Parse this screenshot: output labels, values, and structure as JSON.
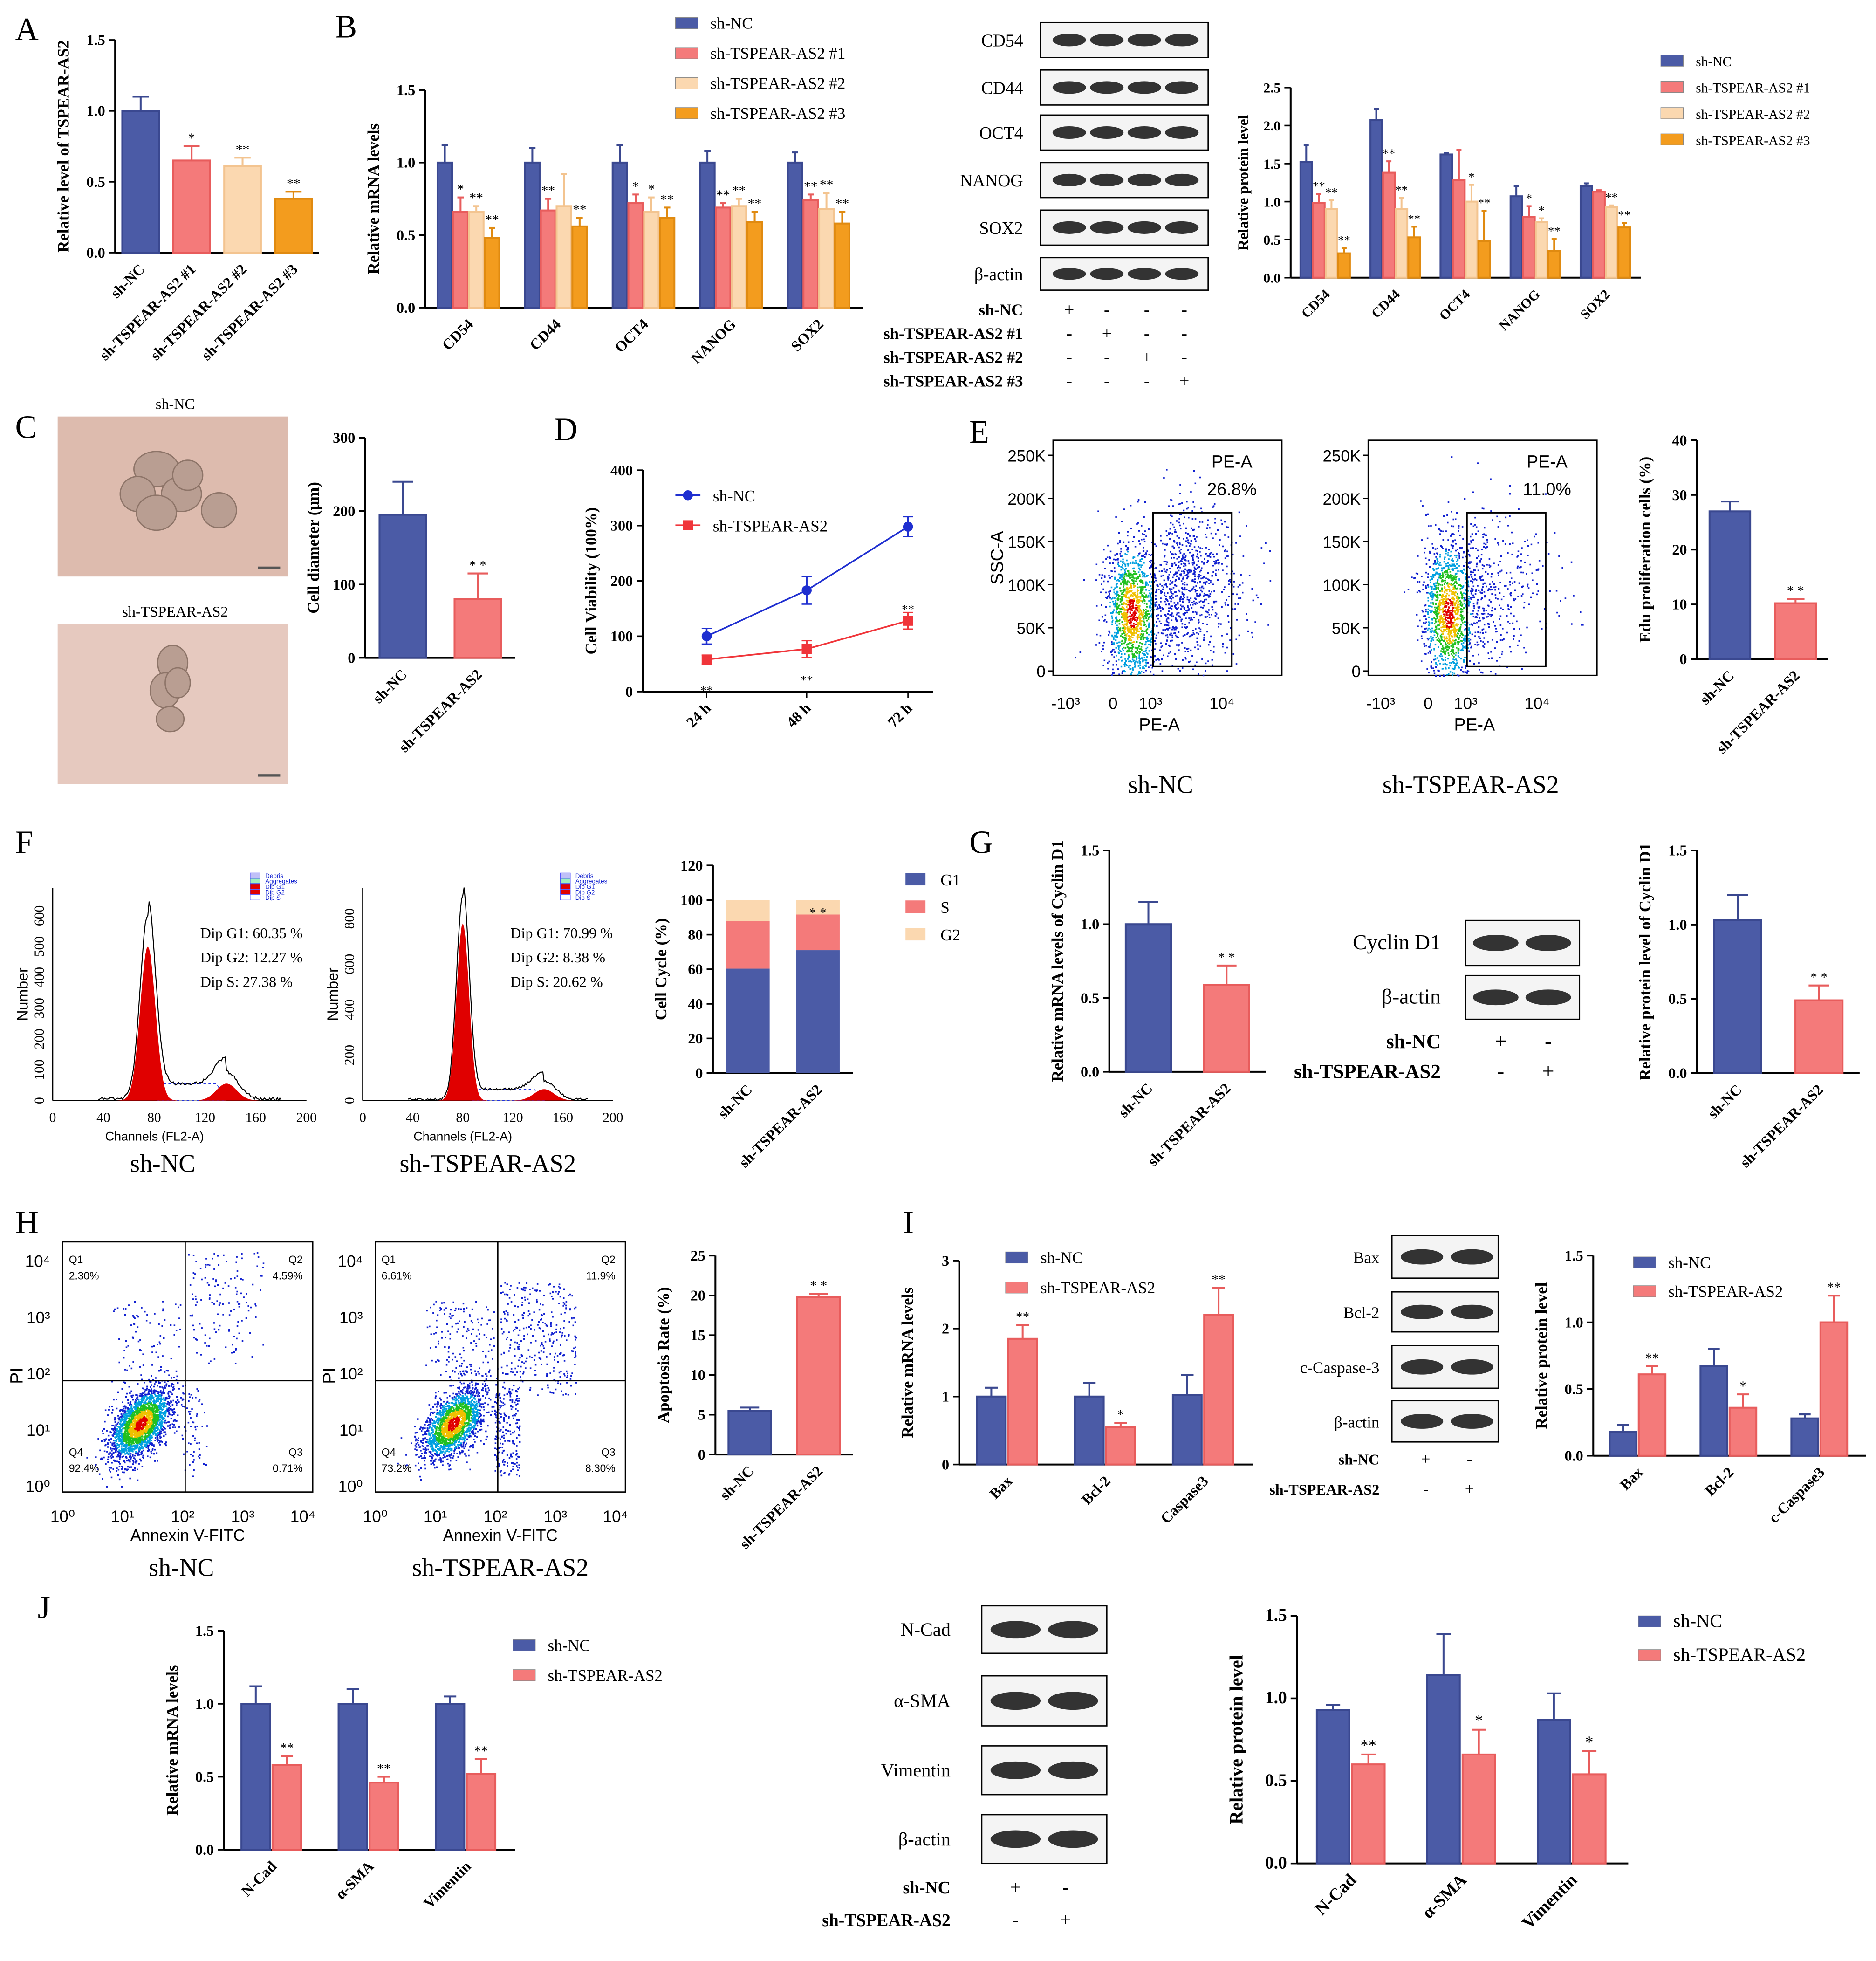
{
  "colors": {
    "nc": "#4B5BA6",
    "kd1": "#F47A7A",
    "kd2": "#FBD8B0",
    "kd3": "#F39C1E",
    "g1": "#4B5BA6",
    "s": "#F47A7A",
    "g2": "#FBD8B0"
  },
  "panel_letters": [
    "A",
    "B",
    "C",
    "D",
    "E",
    "F",
    "G",
    "H",
    "I",
    "J"
  ],
  "legends": {
    "four": [
      "sh-NC",
      "sh-TSPEAR-AS2 #1",
      "sh-TSPEAR-AS2 #2",
      "sh-TSPEAR-AS2 #3"
    ],
    "two": [
      "sh-NC",
      "sh-TSPEAR-AS2"
    ],
    "cycle": [
      "G1",
      "S",
      "G2"
    ]
  },
  "blots": {
    "B": {
      "rows": [
        "CD54",
        "CD44",
        "OCT4",
        "NANOG",
        "SOX2",
        "β-actin"
      ],
      "conditions": [
        {
          "label": "sh-NC",
          "signs": [
            "+",
            "-",
            "-",
            "-"
          ]
        },
        {
          "label": "sh-TSPEAR-AS2 #1",
          "signs": [
            "-",
            "+",
            "-",
            "-"
          ]
        },
        {
          "label": "sh-TSPEAR-AS2 #2",
          "signs": [
            "-",
            "-",
            "+",
            "-"
          ]
        },
        {
          "label": "sh-TSPEAR-AS2 #3",
          "signs": [
            "-",
            "-",
            "-",
            "+"
          ]
        }
      ]
    },
    "G": {
      "rows": [
        "Cyclin D1",
        "β-actin"
      ],
      "conditions": [
        {
          "label": "sh-NC",
          "signs": [
            "+",
            "-"
          ]
        },
        {
          "label": "sh-TSPEAR-AS2",
          "signs": [
            "-",
            "+"
          ]
        }
      ]
    },
    "I": {
      "rows": [
        "Bax",
        "Bcl-2",
        "c-Caspase-3",
        "β-actin"
      ],
      "conditions": [
        {
          "label": "sh-NC",
          "signs": [
            "+",
            "-"
          ]
        },
        {
          "label": "sh-TSPEAR-AS2",
          "signs": [
            "-",
            "+"
          ]
        }
      ]
    },
    "J": {
      "rows": [
        "N-Cad",
        "α-SMA",
        "Vimentin",
        "β-actin"
      ],
      "conditions": [
        {
          "label": "sh-NC",
          "signs": [
            "+",
            "-"
          ]
        },
        {
          "label": "sh-TSPEAR-AS2",
          "signs": [
            "-",
            "+"
          ]
        }
      ]
    }
  },
  "images_C": {
    "labels": [
      "sh-NC",
      "sh-TSPEAR-AS2"
    ]
  },
  "flow_E": {
    "ylabel": "SSC-A",
    "xlabel": "PE-A",
    "yticks": [
      "250K",
      "200K",
      "150K",
      "100K",
      "50K",
      "0"
    ],
    "xticks": [
      "-10³",
      "0",
      "10³",
      "10⁴"
    ],
    "plots": [
      {
        "gate_label": "PE-A",
        "gate_value": "26.8%",
        "caption": "sh-NC"
      },
      {
        "gate_label": "PE-A",
        "gate_value": "11.0%",
        "caption": "sh-TSPEAR-AS2"
      }
    ]
  },
  "hist_F": {
    "ylabel": "Number",
    "xlabel": "Channels (FL2-A)",
    "xticks": [
      "0",
      "40",
      "80",
      "120",
      "160",
      "200"
    ],
    "legend": [
      "Debris",
      "Aggregates",
      "Dip G1",
      "Dip G2",
      "Dip S"
    ],
    "plots": [
      {
        "caption": "sh-NC",
        "yticks": [
          "0",
          "100",
          "200",
          "300",
          "400",
          "500",
          "600"
        ],
        "stats": [
          "Dip G1: 60.35 %",
          "Dip G2: 12.27 %",
          "Dip    S: 27.38 %"
        ]
      },
      {
        "caption": "sh-TSPEAR-AS2",
        "yticks": [
          "0",
          "200",
          "400",
          "600",
          "800"
        ],
        "stats": [
          "Dip G1: 70.99 %",
          "Dip G2: 8.38 %",
          "Dip    S: 20.62 %"
        ]
      }
    ]
  },
  "flow_H": {
    "xlabel": "Annexin V-FITC",
    "ylabel": "PI",
    "ticks": [
      "10⁰",
      "10¹",
      "10²",
      "10³",
      "10⁴"
    ],
    "plots": [
      {
        "caption": "sh-NC",
        "quadrants": [
          {
            "name": "Q1",
            "value": "2.30%"
          },
          {
            "name": "Q2",
            "value": "4.59%"
          },
          {
            "name": "Q3",
            "value": "0.71%"
          },
          {
            "name": "Q4",
            "value": "92.4%"
          }
        ]
      },
      {
        "caption": "sh-TSPEAR-AS2",
        "quadrants": [
          {
            "name": "Q1",
            "value": "6.61%"
          },
          {
            "name": "Q2",
            "value": "11.9%"
          },
          {
            "name": "Q3",
            "value": "8.30%"
          },
          {
            "name": "Q4",
            "value": "73.2%"
          }
        ]
      }
    ]
  },
  "chart_data": [
    {
      "id": "A",
      "type": "bar",
      "ylabel": "Relative  level of TSPEAR-AS2",
      "ylim": [
        0,
        1.5
      ],
      "ticks": [
        "0.0",
        "0.5",
        "1.0",
        "1.5"
      ],
      "categories": [
        "sh-NC",
        "sh-TSPEAR-AS2 #1",
        "sh-TSPEAR-AS2 #2",
        "sh-TSPEAR-AS2 #3"
      ],
      "single": true,
      "series": [
        {
          "name": "value",
          "colors": [
            "nc",
            "kd1",
            "kd2",
            "kd3"
          ],
          "values": [
            1.0,
            0.65,
            0.61,
            0.38
          ],
          "errors": [
            0.1,
            0.1,
            0.06,
            0.05
          ],
          "sig": [
            "",
            "*",
            "**",
            "**"
          ]
        }
      ]
    },
    {
      "id": "B_mrna",
      "type": "bar",
      "ylabel": "Relative mRNA levels",
      "ylim": [
        0,
        1.5
      ],
      "ticks": [
        "0.0",
        "0.5",
        "1.0",
        "1.5"
      ],
      "categories": [
        "CD54",
        "CD44",
        "OCT4",
        "NANOG",
        "SOX2"
      ],
      "series": [
        {
          "name": "sh-NC",
          "color": "nc",
          "values": [
            1.0,
            1.0,
            1.0,
            1.0,
            1.0
          ],
          "errors": [
            0.12,
            0.1,
            0.12,
            0.08,
            0.07
          ],
          "sig": [
            "",
            "",
            "",
            "",
            ""
          ]
        },
        {
          "name": "sh-TSPEAR-AS2 #1",
          "color": "kd1",
          "values": [
            0.66,
            0.67,
            0.72,
            0.69,
            0.74
          ],
          "errors": [
            0.1,
            0.08,
            0.06,
            0.03,
            0.04
          ],
          "sig": [
            "*",
            "**",
            "*",
            "**",
            "**"
          ]
        },
        {
          "name": "sh-TSPEAR-AS2 #2",
          "color": "kd2",
          "values": [
            0.66,
            0.7,
            0.66,
            0.7,
            0.68
          ],
          "errors": [
            0.04,
            0.22,
            0.1,
            0.05,
            0.11
          ],
          "sig": [
            "**",
            "",
            "*",
            "**",
            "**"
          ]
        },
        {
          "name": "sh-TSPEAR-AS2 #3",
          "color": "kd3",
          "values": [
            0.48,
            0.56,
            0.62,
            0.59,
            0.58
          ],
          "errors": [
            0.07,
            0.06,
            0.07,
            0.07,
            0.08
          ],
          "sig": [
            "**",
            "**",
            "**",
            "**",
            "**"
          ]
        }
      ]
    },
    {
      "id": "B_protein",
      "type": "bar",
      "ylabel": "Relative protein level",
      "ylim": [
        0,
        2.5
      ],
      "ticks": [
        "0.0",
        "0.5",
        "1.0",
        "1.5",
        "2.0",
        "2.5"
      ],
      "categories": [
        "CD54",
        "CD44",
        "OCT4",
        "NANOG",
        "SOX2"
      ],
      "series": [
        {
          "name": "sh-NC",
          "color": "nc",
          "values": [
            1.52,
            2.07,
            1.62,
            1.07,
            1.2
          ],
          "errors": [
            0.22,
            0.15,
            0.02,
            0.13,
            0.04
          ],
          "sig": [
            "",
            "",
            "",
            "",
            ""
          ]
        },
        {
          "name": "sh-TSPEAR-AS2 #1",
          "color": "kd1",
          "values": [
            0.98,
            1.38,
            1.28,
            0.8,
            1.13
          ],
          "errors": [
            0.12,
            0.15,
            0.4,
            0.14,
            0.02
          ],
          "sig": [
            "**",
            "**",
            "",
            "*",
            ""
          ]
        },
        {
          "name": "sh-TSPEAR-AS2 #2",
          "color": "kd2",
          "values": [
            0.9,
            0.9,
            1.0,
            0.73,
            0.93
          ],
          "errors": [
            0.12,
            0.15,
            0.22,
            0.05,
            0.02
          ],
          "sig": [
            "**",
            "**",
            "*",
            "*",
            "**"
          ]
        },
        {
          "name": "sh-TSPEAR-AS2 #3",
          "color": "kd3",
          "values": [
            0.32,
            0.53,
            0.48,
            0.35,
            0.66
          ],
          "errors": [
            0.07,
            0.14,
            0.4,
            0.16,
            0.06
          ],
          "sig": [
            "**",
            "**",
            "**",
            "**",
            "**"
          ]
        }
      ]
    },
    {
      "id": "C",
      "type": "bar",
      "ylabel": "Cell diameter (μm)",
      "ylim": [
        0,
        300
      ],
      "ticks": [
        "0",
        "100",
        "200",
        "300"
      ],
      "categories": [
        "sh-NC",
        "sh-TSPEAR-AS2"
      ],
      "single": true,
      "series": [
        {
          "name": "value",
          "colors": [
            "nc",
            "kd1"
          ],
          "values": [
            195,
            80
          ],
          "errors": [
            45,
            35
          ],
          "sig": [
            "",
            "* *"
          ]
        }
      ]
    },
    {
      "id": "D",
      "type": "line",
      "ylabel": "Cell Viability (100%)",
      "ylim": [
        0,
        400
      ],
      "ticks": [
        "0",
        "100",
        "200",
        "300",
        "400"
      ],
      "categories": [
        "24 h",
        "48 h",
        "72 h"
      ],
      "series": [
        {
          "name": "sh-NC",
          "color": "#1F2FD0",
          "values": [
            100,
            183,
            298
          ],
          "errors": [
            14,
            25,
            18
          ],
          "sig": [
            "",
            "",
            ""
          ]
        },
        {
          "name": "sh-TSPEAR-AS2",
          "color": "#F0353A",
          "values": [
            58,
            77,
            128
          ],
          "errors": [
            8,
            15,
            15
          ],
          "sig": [
            "**",
            "**",
            "**"
          ]
        }
      ]
    },
    {
      "id": "E",
      "type": "bar",
      "ylabel": "Edu proliferation cells (%)",
      "ylim": [
        0,
        40
      ],
      "ticks": [
        "0",
        "10",
        "20",
        "30",
        "40"
      ],
      "categories": [
        "sh-NC",
        "sh-TSPEAR-AS2"
      ],
      "single": true,
      "series": [
        {
          "name": "value",
          "colors": [
            "nc",
            "kd1"
          ],
          "values": [
            27,
            10.2
          ],
          "errors": [
            1.8,
            0.8
          ],
          "sig": [
            "",
            "* *"
          ]
        }
      ]
    },
    {
      "id": "F",
      "type": "stacked_bar",
      "ylabel": "Cell Cycle (%)",
      "ylim": [
        0,
        120
      ],
      "ticks": [
        "0",
        "20",
        "40",
        "60",
        "80",
        "100",
        "120"
      ],
      "categories": [
        "sh-NC",
        "sh-TSPEAR-AS2"
      ],
      "series": [
        {
          "name": "G1",
          "color": "g1",
          "values": [
            60.35,
            70.99
          ]
        },
        {
          "name": "S",
          "color": "s",
          "values": [
            27.38,
            20.62
          ]
        },
        {
          "name": "G2",
          "color": "g2",
          "values": [
            12.27,
            8.38
          ]
        }
      ],
      "sig": [
        "",
        "* *"
      ]
    },
    {
      "id": "G_mrna",
      "type": "bar",
      "ylabel": "Relative mRNA levels of Cyclin D1",
      "ylim": [
        0,
        1.5
      ],
      "ticks": [
        "0.0",
        "0.5",
        "1.0",
        "1.5"
      ],
      "categories": [
        "sh-NC",
        "sh-TSPEAR-AS2"
      ],
      "single": true,
      "series": [
        {
          "name": "value",
          "colors": [
            "nc",
            "kd1"
          ],
          "values": [
            1.0,
            0.59
          ],
          "errors": [
            0.15,
            0.13
          ],
          "sig": [
            "",
            "* *"
          ]
        }
      ]
    },
    {
      "id": "G_protein",
      "type": "bar",
      "ylabel": "Relative protein level of Cyclin D1",
      "ylim": [
        0,
        1.5
      ],
      "ticks": [
        "0.0",
        "0.5",
        "1.0",
        "1.5"
      ],
      "categories": [
        "sh-NC",
        "sh-TSPEAR-AS2"
      ],
      "single": true,
      "series": [
        {
          "name": "value",
          "colors": [
            "nc",
            "kd1"
          ],
          "values": [
            1.03,
            0.49
          ],
          "errors": [
            0.17,
            0.1
          ],
          "sig": [
            "",
            "* *"
          ]
        }
      ]
    },
    {
      "id": "H",
      "type": "bar",
      "ylabel": "Apoptosis Rate (%)",
      "ylim": [
        0,
        25
      ],
      "ticks": [
        "0",
        "5",
        "10",
        "15",
        "20",
        "25"
      ],
      "categories": [
        "sh-NC",
        "sh-TSPEAR-AS2"
      ],
      "single": true,
      "series": [
        {
          "name": "value",
          "colors": [
            "nc",
            "kd1"
          ],
          "values": [
            5.5,
            19.8
          ],
          "errors": [
            0.4,
            0.4
          ],
          "sig": [
            "",
            "* *"
          ]
        }
      ]
    },
    {
      "id": "I_mrna",
      "type": "bar",
      "ylabel": "Relative mRNA levels",
      "ylim": [
        0,
        3
      ],
      "ticks": [
        "0",
        "1",
        "2",
        "3"
      ],
      "categories": [
        "Bax",
        "Bcl-2",
        "Caspase3"
      ],
      "series": [
        {
          "name": "sh-NC",
          "color": "nc",
          "values": [
            1.0,
            1.0,
            1.02
          ],
          "errors": [
            0.13,
            0.2,
            0.3
          ],
          "sig": [
            "",
            "",
            ""
          ]
        },
        {
          "name": "sh-TSPEAR-AS2",
          "color": "kd1",
          "values": [
            1.85,
            0.55,
            2.2
          ],
          "errors": [
            0.2,
            0.06,
            0.4
          ],
          "sig": [
            "**",
            "*",
            "**"
          ]
        }
      ]
    },
    {
      "id": "I_protein",
      "type": "bar",
      "ylabel": "Relative protein level",
      "ylim": [
        0,
        1.5
      ],
      "ticks": [
        "0.0",
        "0.5",
        "1.0",
        "1.5"
      ],
      "categories": [
        "Bax",
        "Bcl-2",
        "c-Caspase3"
      ],
      "series": [
        {
          "name": "sh-NC",
          "color": "nc",
          "values": [
            0.18,
            0.67,
            0.28
          ],
          "errors": [
            0.05,
            0.13,
            0.03
          ],
          "sig": [
            "",
            "",
            ""
          ]
        },
        {
          "name": "sh-TSPEAR-AS2",
          "color": "kd1",
          "values": [
            0.61,
            0.36,
            1.0
          ],
          "errors": [
            0.06,
            0.1,
            0.2
          ],
          "sig": [
            "**",
            "*",
            "**"
          ]
        }
      ]
    },
    {
      "id": "J_mrna",
      "type": "bar",
      "ylabel": "Relative mRNA levels",
      "ylim": [
        0,
        1.5
      ],
      "ticks": [
        "0.0",
        "0.5",
        "1.0",
        "1.5"
      ],
      "categories": [
        "N-Cad",
        "α-SMA",
        "Vimentin"
      ],
      "series": [
        {
          "name": "sh-NC",
          "color": "nc",
          "values": [
            1.0,
            1.0,
            1.0
          ],
          "errors": [
            0.12,
            0.1,
            0.05
          ],
          "sig": [
            "",
            "",
            ""
          ]
        },
        {
          "name": "sh-TSPEAR-AS2",
          "color": "kd1",
          "values": [
            0.58,
            0.46,
            0.52
          ],
          "errors": [
            0.06,
            0.04,
            0.1
          ],
          "sig": [
            "**",
            "**",
            "**"
          ]
        }
      ]
    },
    {
      "id": "J_protein",
      "type": "bar",
      "ylabel": "Relative protein level",
      "ylim": [
        0,
        1.5
      ],
      "ticks": [
        "0.0",
        "0.5",
        "1.0",
        "1.5"
      ],
      "categories": [
        "N-Cad",
        "α-SMA",
        "Vimentin"
      ],
      "series": [
        {
          "name": "sh-NC",
          "color": "nc",
          "values": [
            0.93,
            1.14,
            0.87
          ],
          "errors": [
            0.03,
            0.25,
            0.16
          ],
          "sig": [
            "",
            "",
            ""
          ]
        },
        {
          "name": "sh-TSPEAR-AS2",
          "color": "kd1",
          "values": [
            0.6,
            0.66,
            0.54
          ],
          "errors": [
            0.06,
            0.15,
            0.14
          ],
          "sig": [
            "**",
            "*",
            "*"
          ]
        }
      ]
    }
  ]
}
